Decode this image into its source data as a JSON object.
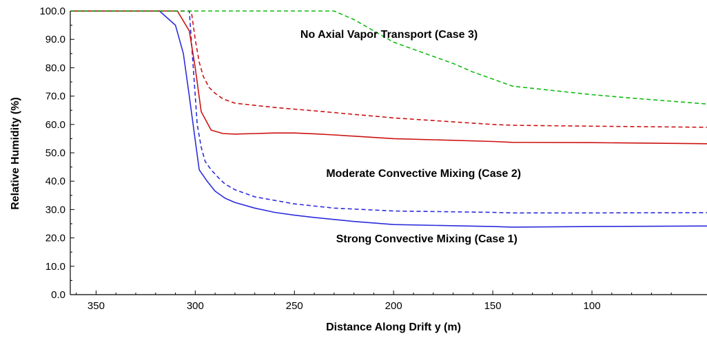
{
  "chart_data": {
    "type": "line",
    "xlabel": "Distance Along Drift y  (m)",
    "ylabel": "Relative Humidity  (%)",
    "xlim": [
      363,
      42
    ],
    "ylim": [
      0,
      100
    ],
    "x_reversed": true,
    "grid": false,
    "x_ticks": [
      350,
      300,
      250,
      200,
      150,
      100
    ],
    "x_tick_labels": [
      "350",
      "300",
      "250",
      "200",
      "150",
      "100"
    ],
    "y_ticks": [
      0,
      10,
      20,
      30,
      40,
      50,
      60,
      70,
      80,
      90,
      100
    ],
    "y_tick_labels": [
      "0.0",
      "10.0",
      "20.0",
      "30.0",
      "40.0",
      "50.0",
      "60.0",
      "70.0",
      "80.0",
      "90.0",
      "100.0"
    ],
    "annotations": [
      {
        "text": "No Axial Vapor Transport  (Case 3)",
        "x": 247,
        "y": 90.5
      },
      {
        "text": "Moderate Convective Mixing  (Case 2)",
        "x": 234,
        "y": 41.5
      },
      {
        "text": "Strong Convective Mixing  (Case 1)",
        "x": 229,
        "y": 18.5
      }
    ],
    "series": [
      {
        "color": "#2b2bdd",
        "dash": "solid",
        "x": [
          363,
          318,
          310,
          306,
          303,
          298,
          294,
          290,
          285,
          280,
          270,
          260,
          250,
          240,
          230,
          220,
          200,
          150,
          140,
          100,
          42
        ],
        "y": [
          100,
          100,
          95,
          85,
          70,
          44,
          40,
          36.5,
          34,
          32.5,
          30.5,
          29,
          28,
          27.2,
          26.5,
          25.8,
          24.7,
          24,
          23.8,
          24,
          24.2
        ]
      },
      {
        "color": "#2b2bdd",
        "dash": "dashed",
        "x": [
          363,
          303,
          301,
          299,
          297,
          295,
          292,
          288,
          285,
          280,
          270,
          250,
          230,
          200,
          150,
          140,
          100,
          42
        ],
        "y": [
          100,
          100,
          80,
          60,
          52,
          47,
          44,
          41,
          39,
          37,
          34.5,
          32,
          30.5,
          29.5,
          29,
          28.8,
          28.8,
          28.9
        ]
      },
      {
        "color": "#cc1111",
        "dash": "solid",
        "x": [
          363,
          309,
          303,
          300,
          297,
          292,
          286,
          280,
          270,
          260,
          250,
          240,
          230,
          200,
          150,
          140,
          100,
          42
        ],
        "y": [
          100,
          100,
          93,
          80,
          64.5,
          58,
          56.8,
          56.6,
          56.8,
          57,
          57,
          56.7,
          56.3,
          55,
          54,
          53.7,
          53.6,
          53.2
        ]
      },
      {
        "color": "#cc1111",
        "dash": "dashed",
        "x": [
          363,
          302,
          300,
          298,
          296,
          293,
          290,
          286,
          280,
          260,
          240,
          200,
          150,
          140,
          100,
          42
        ],
        "y": [
          100,
          100,
          90,
          82,
          77,
          73,
          71,
          69,
          67.5,
          66,
          64.8,
          62.3,
          60,
          59.7,
          59.4,
          59
        ]
      },
      {
        "color": "#11bb11",
        "dash": "dashed",
        "x": [
          363,
          230,
          220,
          210,
          200,
          190,
          180,
          170,
          160,
          150,
          140,
          120,
          100,
          80,
          60,
          42
        ],
        "y": [
          100,
          100,
          97,
          93,
          89,
          86.5,
          84,
          81.5,
          78.5,
          76,
          73.5,
          72,
          70.5,
          69.3,
          68.2,
          67.2
        ]
      }
    ]
  }
}
